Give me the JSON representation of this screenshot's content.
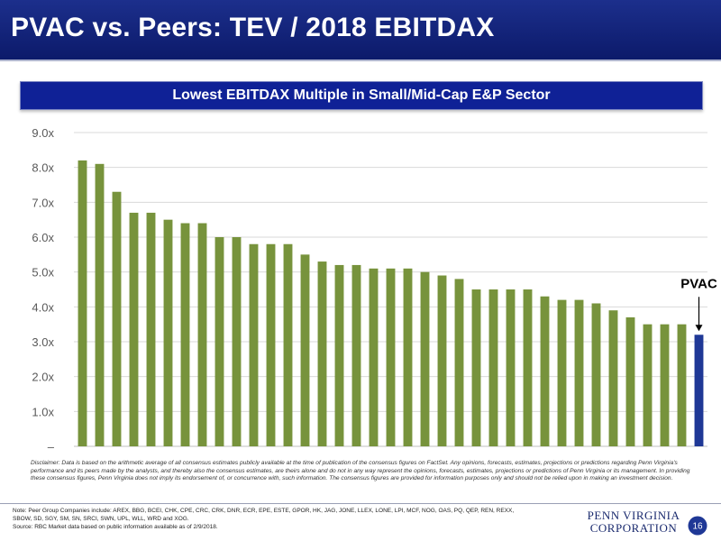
{
  "page": {
    "title": "PVAC vs. Peers: TEV / 2018 EBITDAX",
    "disclaimer": "Disclaimer: Data is based on the arithmetic average of all consensus estimates publicly available at the time of publication of the consensus figures on FactSet. Any opinions, forecasts, estimates, projections or predictions regarding Penn Virginia's performance and its peers made by the analysts, and thereby also the consensus estimates, are theirs alone and do not in any way represent the opinions, forecasts, estimates, projections or predictions of Penn Virginia or its management. In providing these consensus figures, Penn Virginia does not imply its endorsement of, or concurrence with, such information. The consensus figures are provided for information purposes only and should not be relied upon in making an investment decision.",
    "note_line1": "Note: Peer Group Companies include: AREX, BBG, BCEI, CHK, CPE, CRC, CRK, DNR, ECR, EPE, ESTE, GPOR, HK, JAG, JONE, LLEX, LONE, LPI, MCF, NOG, OAS, PQ, QEP, REN, REXX,",
    "note_line2": "SBOW, SD, SGY, SM, SN, SRCI, SWN, UPL, WLL, WRD and XOG.",
    "source": "Source: RBC Market data based on public information available as of 2/9/2018.",
    "logo_line1": "PENN VIRGINIA",
    "logo_line2": "CORPORATION",
    "page_number": "16"
  },
  "chart_data": {
    "type": "bar",
    "title": "Lowest EBITDAX Multiple in Small/Mid-Cap E&P Sector",
    "xlabel": "",
    "ylabel": "",
    "ylim": [
      0,
      9
    ],
    "y_ticks": [
      "–",
      "1.0x",
      "2.0x",
      "3.0x",
      "4.0x",
      "5.0x",
      "6.0x",
      "7.0x",
      "8.0x",
      "9.0x"
    ],
    "values": [
      8.2,
      8.1,
      7.3,
      6.7,
      6.7,
      6.5,
      6.4,
      6.4,
      6.0,
      6.0,
      5.8,
      5.8,
      5.8,
      5.5,
      5.3,
      5.2,
      5.2,
      5.1,
      5.1,
      5.1,
      5.0,
      4.9,
      4.8,
      4.5,
      4.5,
      4.5,
      4.5,
      4.3,
      4.2,
      4.2,
      4.1,
      3.9,
      3.7,
      3.5,
      3.5,
      3.5,
      3.2
    ],
    "highlight_index": 36,
    "highlight_label": "PVAC",
    "bar_color": "#77933c",
    "highlight_color": "#1f3896",
    "grid": true,
    "legend": "none"
  }
}
